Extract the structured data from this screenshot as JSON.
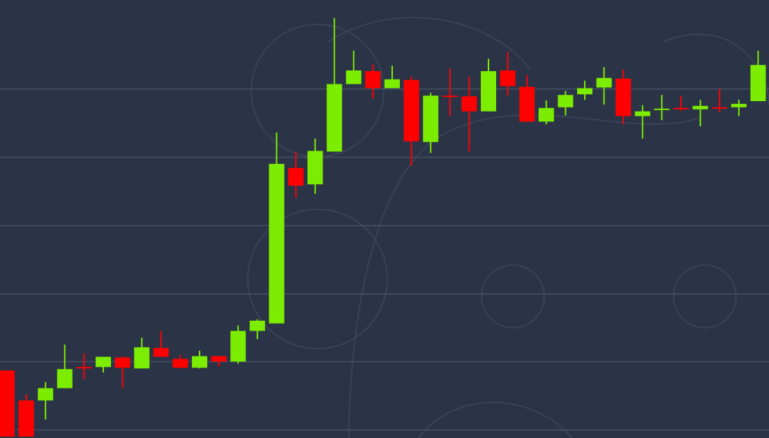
{
  "chart_data": {
    "type": "candlestick",
    "title": "",
    "xlabel": "",
    "ylabel": "",
    "ylim": [
      0,
      626
    ],
    "grid": true,
    "gridlines": [
      10,
      110,
      210,
      310,
      410,
      510
    ],
    "colors": {
      "background": "#2b3447",
      "gridline": "#465064",
      "up": "#7cec00",
      "down": "#ff0000",
      "watermark": "#3a4357"
    },
    "candles": [
      {
        "o": 97,
        "h": 97,
        "l": 0,
        "c": 0
      },
      {
        "o": 53,
        "h": 62,
        "l": 0,
        "c": 0
      },
      {
        "o": 53,
        "h": 80,
        "l": 25,
        "c": 71
      },
      {
        "o": 71,
        "h": 135,
        "l": 71,
        "c": 99
      },
      {
        "o": 102,
        "h": 122,
        "l": 84,
        "c": 100
      },
      {
        "o": 102,
        "h": 117,
        "l": 94,
        "c": 117
      },
      {
        "o": 116,
        "h": 118,
        "l": 71,
        "c": 101
      },
      {
        "o": 100,
        "h": 145,
        "l": 100,
        "c": 131
      },
      {
        "o": 130,
        "h": 155,
        "l": 117,
        "c": 117
      },
      {
        "o": 114,
        "h": 120,
        "l": 100,
        "c": 101
      },
      {
        "o": 101,
        "h": 126,
        "l": 100,
        "c": 118
      },
      {
        "o": 118,
        "h": 118,
        "l": 103,
        "c": 110
      },
      {
        "o": 110,
        "h": 163,
        "l": 107,
        "c": 155
      },
      {
        "o": 155,
        "h": 172,
        "l": 143,
        "c": 170
      },
      {
        "o": 166,
        "h": 446,
        "l": 166,
        "c": 400
      },
      {
        "o": 394,
        "h": 418,
        "l": 350,
        "c": 368
      },
      {
        "o": 370,
        "h": 437,
        "l": 356,
        "c": 419
      },
      {
        "o": 418,
        "h": 614,
        "l": 418,
        "c": 517
      },
      {
        "o": 517,
        "h": 566,
        "l": 517,
        "c": 537
      },
      {
        "o": 536,
        "h": 546,
        "l": 496,
        "c": 511
      },
      {
        "o": 511,
        "h": 544,
        "l": 511,
        "c": 524
      },
      {
        "o": 523,
        "h": 528,
        "l": 397,
        "c": 433
      },
      {
        "o": 432,
        "h": 504,
        "l": 416,
        "c": 500
      },
      {
        "o": 500,
        "h": 540,
        "l": 470,
        "c": 499
      },
      {
        "o": 499,
        "h": 528,
        "l": 418,
        "c": 477
      },
      {
        "o": 477,
        "h": 554,
        "l": 477,
        "c": 536
      },
      {
        "o": 537,
        "h": 564,
        "l": 500,
        "c": 514
      },
      {
        "o": 513,
        "h": 530,
        "l": 461,
        "c": 462
      },
      {
        "o": 462,
        "h": 493,
        "l": 458,
        "c": 482
      },
      {
        "o": 483,
        "h": 507,
        "l": 471,
        "c": 501
      },
      {
        "o": 502,
        "h": 522,
        "l": 494,
        "c": 511
      },
      {
        "o": 512,
        "h": 542,
        "l": 487,
        "c": 526
      },
      {
        "o": 525,
        "h": 538,
        "l": 458,
        "c": 470
      },
      {
        "o": 470,
        "h": 486,
        "l": 437,
        "c": 477
      },
      {
        "o": 479,
        "h": 501,
        "l": 464,
        "c": 481
      },
      {
        "o": 482,
        "h": 500,
        "l": 478,
        "c": 481
      },
      {
        "o": 480,
        "h": 494,
        "l": 455,
        "c": 485
      },
      {
        "o": 483,
        "h": 510,
        "l": 476,
        "c": 482
      },
      {
        "o": 483,
        "h": 494,
        "l": 470,
        "c": 488
      },
      {
        "o": 492,
        "h": 566,
        "l": 492,
        "c": 545
      }
    ]
  }
}
